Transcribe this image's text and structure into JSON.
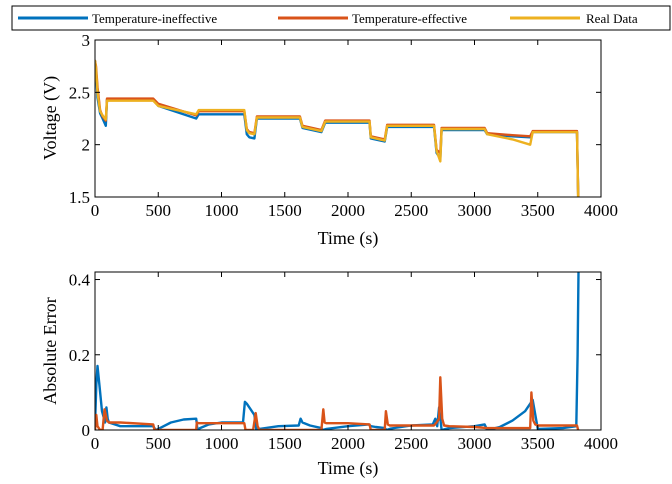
{
  "chart_data": [
    {
      "type": "line",
      "xlabel": "Time (s)",
      "ylabel": "Voltage (V)",
      "xlim": [
        0,
        4000
      ],
      "ylim": [
        1.5,
        3
      ],
      "xticks": [
        0,
        500,
        1000,
        1500,
        2000,
        2500,
        3000,
        3500,
        4000
      ],
      "yticks": [
        1.5,
        2,
        2.5,
        3
      ],
      "ytick_labels": [
        "1.5",
        "2",
        "2.5",
        "3"
      ],
      "grid": false,
      "legend": "top",
      "series": [
        {
          "name": "Temperature-ineffective",
          "color": "#0072BD",
          "x": [
            0,
            8,
            20,
            40,
            60,
            85,
            95,
            110,
            200,
            460,
            500,
            800,
            820,
            1000,
            1180,
            1200,
            1220,
            1260,
            1280,
            1400,
            1620,
            1640,
            1790,
            1820,
            2000,
            2170,
            2180,
            2290,
            2310,
            2500,
            2680,
            2700,
            2730,
            2740,
            2900,
            3080,
            3100,
            3300,
            3440,
            3460,
            3600,
            3810,
            3820
          ],
          "y": [
            2.8,
            2.7,
            2.45,
            2.3,
            2.25,
            2.18,
            2.43,
            2.43,
            2.43,
            2.43,
            2.37,
            2.25,
            2.29,
            2.29,
            2.29,
            2.1,
            2.07,
            2.06,
            2.25,
            2.25,
            2.25,
            2.16,
            2.12,
            2.21,
            2.21,
            2.21,
            2.06,
            2.03,
            2.17,
            2.17,
            2.17,
            1.92,
            1.87,
            2.14,
            2.14,
            2.14,
            2.1,
            2.08,
            2.07,
            2.12,
            2.12,
            2.12,
            1.5
          ]
        },
        {
          "name": "Temperature-effective",
          "color": "#D95319",
          "x": [
            0,
            8,
            20,
            40,
            60,
            85,
            95,
            110,
            200,
            460,
            500,
            800,
            820,
            1000,
            1180,
            1200,
            1220,
            1260,
            1280,
            1400,
            1620,
            1640,
            1790,
            1820,
            2000,
            2170,
            2180,
            2290,
            2310,
            2500,
            2680,
            2700,
            2730,
            2740,
            2900,
            3080,
            3100,
            3300,
            3440,
            3460,
            3600,
            3810,
            3820
          ],
          "y": [
            2.8,
            2.75,
            2.55,
            2.33,
            2.27,
            2.23,
            2.44,
            2.44,
            2.44,
            2.44,
            2.39,
            2.28,
            2.32,
            2.32,
            2.32,
            2.15,
            2.12,
            2.11,
            2.27,
            2.27,
            2.27,
            2.18,
            2.14,
            2.23,
            2.23,
            2.23,
            2.08,
            2.05,
            2.19,
            2.19,
            2.19,
            1.95,
            1.92,
            2.16,
            2.16,
            2.16,
            2.11,
            2.09,
            2.08,
            2.13,
            2.13,
            2.13,
            1.5
          ]
        },
        {
          "name": "Real Data",
          "color": "#EDB120",
          "x": [
            0,
            8,
            20,
            40,
            60,
            85,
            95,
            110,
            200,
            460,
            500,
            800,
            820,
            1000,
            1180,
            1200,
            1220,
            1260,
            1280,
            1400,
            1620,
            1640,
            1790,
            1820,
            2000,
            2170,
            2180,
            2290,
            2310,
            2500,
            2680,
            2700,
            2730,
            2740,
            2900,
            3080,
            3100,
            3300,
            3440,
            3460,
            3600,
            3810,
            3820
          ],
          "y": [
            2.8,
            2.72,
            2.5,
            2.32,
            2.28,
            2.24,
            2.42,
            2.42,
            2.42,
            2.42,
            2.37,
            2.29,
            2.33,
            2.33,
            2.33,
            2.14,
            2.11,
            2.1,
            2.26,
            2.26,
            2.26,
            2.17,
            2.13,
            2.22,
            2.22,
            2.22,
            2.07,
            2.04,
            2.18,
            2.18,
            2.18,
            1.94,
            1.84,
            2.15,
            2.15,
            2.15,
            2.1,
            2.05,
            2.0,
            2.12,
            2.12,
            2.12,
            1.48
          ]
        }
      ]
    },
    {
      "type": "line",
      "xlabel": "Time (s)",
      "ylabel": "Absolute Error",
      "xlim": [
        0,
        4000
      ],
      "ylim": [
        0,
        0.42
      ],
      "xticks": [
        0,
        500,
        1000,
        1500,
        2000,
        2500,
        3000,
        3500,
        4000
      ],
      "yticks": [
        0,
        0.2,
        0.4
      ],
      "ytick_labels": [
        "0",
        "0.2",
        "0.4"
      ],
      "grid": false,
      "series": [
        {
          "name": "Temperature-ineffective",
          "color": "#0072BD",
          "x": [
            0,
            10,
            20,
            35,
            55,
            80,
            90,
            100,
            110,
            200,
            460,
            480,
            500,
            600,
            700,
            800,
            810,
            830,
            900,
            1000,
            1170,
            1185,
            1200,
            1230,
            1260,
            1275,
            1300,
            1450,
            1610,
            1625,
            1640,
            1700,
            1790,
            1800,
            1830,
            2000,
            2165,
            2180,
            2220,
            2290,
            2305,
            2340,
            2500,
            2670,
            2690,
            2705,
            2720,
            2740,
            2800,
            3000,
            3080,
            3100,
            3200,
            3300,
            3400,
            3440,
            3460,
            3500,
            3700,
            3805,
            3815,
            3822
          ],
          "y": [
            0.01,
            0.12,
            0.17,
            0.12,
            0.05,
            0.02,
            0.06,
            0.03,
            0.02,
            0.01,
            0.01,
            0.0,
            0.003,
            0.02,
            0.028,
            0.03,
            0.0,
            0.005,
            0.015,
            0.02,
            0.02,
            0.075,
            0.07,
            0.055,
            0.04,
            0.0,
            0.003,
            0.01,
            0.012,
            0.03,
            0.02,
            0.012,
            0.005,
            0.0,
            0.003,
            0.01,
            0.015,
            0.01,
            0.008,
            0.005,
            0.0,
            0.004,
            0.012,
            0.015,
            0.03,
            0.01,
            0.06,
            0.0,
            0.005,
            0.01,
            0.015,
            0.0,
            0.008,
            0.025,
            0.05,
            0.07,
            0.08,
            0.003,
            0.005,
            0.01,
            0.2,
            0.42
          ]
        },
        {
          "name": "Temperature-effective",
          "color": "#D95319",
          "x": [
            0,
            10,
            20,
            40,
            60,
            75,
            85,
            95,
            110,
            200,
            460,
            470,
            500,
            800,
            805,
            820,
            1000,
            1180,
            1190,
            1250,
            1270,
            1285,
            1300,
            1600,
            1620,
            1790,
            1805,
            1815,
            1830,
            2000,
            2170,
            2180,
            2290,
            2300,
            2315,
            2330,
            2500,
            2680,
            2700,
            2720,
            2730,
            2745,
            2760,
            2800,
            3000,
            3100,
            3440,
            3450,
            3465,
            3480,
            3500,
            3810,
            3820
          ],
          "y": [
            0.0,
            0.04,
            0.01,
            0.0,
            0.0,
            0.055,
            0.04,
            0.025,
            0.02,
            0.02,
            0.015,
            0.0,
            0.0,
            0.0,
            0.02,
            0.018,
            0.018,
            0.018,
            0.0,
            0.0,
            0.045,
            0.01,
            0.0,
            0.0,
            0.0,
            0.0,
            0.055,
            0.02,
            0.018,
            0.018,
            0.015,
            0.0,
            0.0,
            0.05,
            0.015,
            0.012,
            0.012,
            0.012,
            0.02,
            0.03,
            0.14,
            0.03,
            0.012,
            0.01,
            0.008,
            0.005,
            0.005,
            0.1,
            0.025,
            0.015,
            0.012,
            0.012,
            0.0
          ]
        }
      ]
    }
  ]
}
